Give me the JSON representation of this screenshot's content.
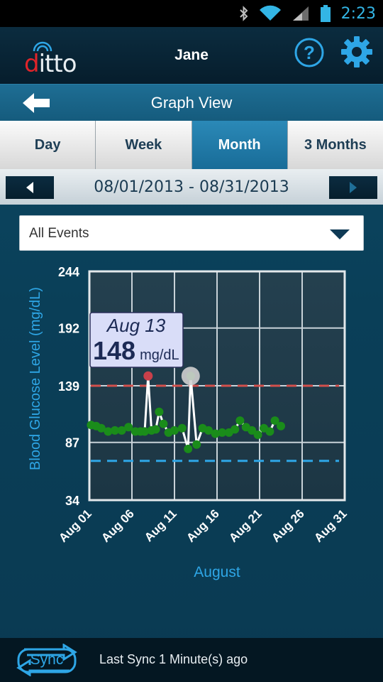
{
  "status_bar": {
    "time": "2:23",
    "icons": [
      "bluetooth-icon",
      "wifi-icon",
      "signal-icon",
      "battery-icon"
    ]
  },
  "header": {
    "logo_first": "d",
    "logo_rest": "itto",
    "user_name": "Jane",
    "help_icon": "question-icon",
    "settings_icon": "gear-icon"
  },
  "titlebar": {
    "title": "Graph View",
    "back_icon": "arrow-left-icon"
  },
  "tabs": [
    {
      "label": "Day",
      "active": false
    },
    {
      "label": "Week",
      "active": false
    },
    {
      "label": "Month",
      "active": true
    },
    {
      "label": "3 Months",
      "active": false
    }
  ],
  "date_nav": {
    "range": "08/01/2013 - 08/31/2013",
    "prev_icon": "triangle-left-icon",
    "next_icon": "triangle-right-icon"
  },
  "filter": {
    "selected": "All Events",
    "icon": "chevron-down-icon"
  },
  "chart_data": {
    "type": "line",
    "ylabel": "Blood Glucose Level (mg/dL)",
    "xlabel": "August",
    "ylim": [
      34,
      244
    ],
    "yticks": [
      244,
      192,
      139,
      87,
      34
    ],
    "xlim": [
      1,
      31
    ],
    "xticks": [
      {
        "day": 1,
        "label": "Aug 01"
      },
      {
        "day": 6,
        "label": "Aug 06"
      },
      {
        "day": 11,
        "label": "Aug 11"
      },
      {
        "day": 16,
        "label": "Aug 16"
      },
      {
        "day": 21,
        "label": "Aug 21"
      },
      {
        "day": 26,
        "label": "Aug 26"
      },
      {
        "day": 31,
        "label": "Aug 31"
      }
    ],
    "grid": true,
    "thresholds": [
      {
        "value": 139,
        "color": "#d4504c"
      },
      {
        "value": 70,
        "color": "#2ea6e6"
      }
    ],
    "series": [
      {
        "color": "#1a8c1a",
        "points": [
          [
            1.2,
            103
          ],
          [
            1.8,
            102
          ],
          [
            2.4,
            100
          ],
          [
            3.2,
            97
          ],
          [
            4.0,
            98
          ],
          [
            4.8,
            98
          ],
          [
            5.6,
            101
          ],
          [
            6.4,
            97
          ],
          [
            7.0,
            97
          ],
          [
            7.5,
            97
          ],
          [
            7.9,
            148
          ],
          [
            8.3,
            98
          ],
          [
            8.8,
            99
          ],
          [
            9.2,
            115
          ],
          [
            9.7,
            104
          ],
          [
            10.3,
            96
          ],
          [
            11.0,
            98
          ],
          [
            11.9,
            100
          ],
          [
            12.6,
            81
          ],
          [
            12.9,
            148
          ],
          [
            13.6,
            85
          ],
          [
            14.3,
            100
          ],
          [
            15.0,
            98
          ],
          [
            15.8,
            95
          ],
          [
            16.6,
            96
          ],
          [
            17.4,
            96
          ],
          [
            18.1,
            99
          ],
          [
            18.7,
            107
          ],
          [
            19.4,
            101
          ],
          [
            20.1,
            98
          ],
          [
            20.8,
            94
          ],
          [
            21.5,
            100
          ],
          [
            22.2,
            97
          ],
          [
            22.8,
            107
          ],
          [
            23.5,
            102
          ]
        ]
      }
    ],
    "highlight_points": [
      {
        "x": 7.9,
        "y": 148,
        "color": "#c8404a"
      },
      {
        "x": 12.9,
        "y": 148,
        "color": "#cfcfcf"
      }
    ],
    "tooltip": {
      "date": "Aug 13",
      "value": "148",
      "unit": "mg/dL"
    }
  },
  "footer": {
    "sync_label": "Sync",
    "status": "Last Sync 1 Minute(s) ago"
  }
}
